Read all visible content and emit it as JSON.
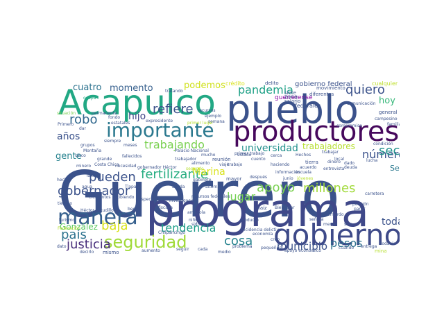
{
  "words": [
    {
      "text": "Guerrero",
      "color": "#3b528b"
    },
    {
      "text": "programa",
      "color": "#3f4889"
    },
    {
      "text": "pueblo",
      "color": "#3b528b"
    },
    {
      "text": "Acapulco",
      "color": "#22a884"
    },
    {
      "text": "productores",
      "color": "#46085c"
    },
    {
      "text": "gobierno",
      "color": "#3e4a89"
    },
    {
      "text": "importante",
      "color": "#2a788e"
    },
    {
      "text": "manera",
      "color": "#355f8d"
    },
    {
      "text": "seguridad",
      "color": "#a0da39"
    },
    {
      "text": "gobernador",
      "color": "#3b528b"
    },
    {
      "text": "pandemia",
      "color": "#1fa187"
    },
    {
      "text": "quiero",
      "color": "#3b528b"
    },
    {
      "text": "apoyo",
      "color": "#7ad151"
    },
    {
      "text": "fertilizante",
      "color": "#27ad81"
    },
    {
      "text": "trabajando",
      "color": "#7ad151"
    },
    {
      "text": "refiere",
      "color": "#3b528b"
    },
    {
      "text": "robo",
      "color": "#31688e"
    },
    {
      "text": "hijo",
      "color": "#414487"
    },
    {
      "text": "pueden",
      "color": "#3b528b"
    },
    {
      "text": "baja",
      "color": "#d8e219"
    },
    {
      "text": "país",
      "color": "#2c728e"
    },
    {
      "text": "justicia",
      "color": "#472d7b"
    },
    {
      "text": "tendencia",
      "color": "#1f9e89"
    },
    {
      "text": "cosa",
      "color": "#26828e"
    },
    {
      "text": "municipio",
      "color": "#3b528b"
    },
    {
      "text": "pesos",
      "color": "#2d708e"
    },
    {
      "text": "lugar",
      "color": "#75d054"
    },
    {
      "text": "millones",
      "color": "#a0da39"
    },
    {
      "text": "número",
      "color": "#3b528b"
    },
    {
      "text": "secretario",
      "color": "#21918c"
    },
    {
      "text": "toda",
      "color": "#3b528b"
    },
    {
      "text": "Marina",
      "color": "#d8e219"
    },
    {
      "text": "cuatro",
      "color": "#2c728e"
    },
    {
      "text": "momento",
      "color": "#355f8d"
    },
    {
      "text": "podemos",
      "color": "#d0e11c"
    },
    {
      "text": "universidad",
      "color": "#21918c"
    },
    {
      "text": "trabajadores",
      "color": "#b5de2b"
    },
    {
      "text": "años",
      "color": "#3b528b"
    },
    {
      "text": "gente",
      "color": "#26828e"
    },
    {
      "text": "hoy",
      "color": "#35b779"
    },
    {
      "text": "González",
      "color": "#5ec962"
    },
    {
      "text": "Seguridad Pública",
      "color": "#2a788e"
    },
    {
      "text": "gobierno federal",
      "color": "#3b528b"
    },
    {
      "text": "crédito",
      "color": "#d8e219"
    },
    {
      "text": "delito",
      "color": "#3b528b"
    },
    {
      "text": "movimiento",
      "color": "#3b528b"
    },
    {
      "text": "cualquier",
      "color": "#bddf26"
    },
    {
      "text": "guerrerense",
      "color": "#8b0aa5"
    },
    {
      "text": "zona",
      "color": "#3b528b"
    },
    {
      "text": "federales",
      "color": "#3b528b"
    },
    {
      "text": "siete",
      "color": "#3b528b"
    },
    {
      "text": "diferentes",
      "color": "#3b528b"
    },
    {
      "text": "salario",
      "color": "#3b528b"
    },
    {
      "text": "comunicación",
      "color": "#3b528b"
    },
    {
      "text": "ocupa",
      "color": "#22a884"
    },
    {
      "text": "situación",
      "color": "#7ad151"
    },
    {
      "text": "permanente",
      "color": "#3b528b"
    },
    {
      "text": "recursos",
      "color": "#3b528b"
    },
    {
      "text": "expresidente",
      "color": "#3b528b"
    },
    {
      "text": "ejemplo",
      "color": "#3b528b"
    },
    {
      "text": "semana",
      "color": "#3b528b"
    },
    {
      "text": "primer lugar",
      "color": "#b5de2b"
    },
    {
      "text": "Primero",
      "color": "#3b528b"
    },
    {
      "text": "dar",
      "color": "#3b528b"
    },
    {
      "text": "fondo",
      "color": "#3b528b"
    },
    {
      "text": "estatales",
      "color": "#3b528b"
    },
    {
      "text": "meses",
      "color": "#3b528b"
    },
    {
      "text": "siempre",
      "color": "#3b528b"
    },
    {
      "text": "grupos",
      "color": "#3b528b"
    },
    {
      "text": "cinco",
      "color": "#3b528b"
    },
    {
      "text": "Montaña",
      "color": "#3b528b"
    },
    {
      "text": "minero",
      "color": "#3b528b"
    },
    {
      "text": "Costa Chica",
      "color": "#3b528b"
    },
    {
      "text": "hecho",
      "color": "#3b528b"
    },
    {
      "text": "tiempo",
      "color": "#3b528b"
    },
    {
      "text": "turismo",
      "color": "#3b528b"
    },
    {
      "text": "Federación",
      "color": "#b5de2b"
    },
    {
      "text": "dato",
      "color": "#3b528b"
    },
    {
      "text": "elementos",
      "color": "#3b528b"
    },
    {
      "text": "recibiendo",
      "color": "#3b528b"
    },
    {
      "text": "Héctor Astudillo",
      "color": "#3b528b"
    },
    {
      "text": "beca",
      "color": "#3b528b"
    },
    {
      "text": "mismo",
      "color": "#3b528b"
    },
    {
      "text": "decirlo",
      "color": "#3b528b"
    },
    {
      "text": "aumento",
      "color": "#3b528b"
    },
    {
      "text": "Chilpancingo",
      "color": "#3b528b"
    },
    {
      "text": "niños",
      "color": "#3b528b"
    },
    {
      "text": "amapola",
      "color": "#3b528b"
    },
    {
      "text": "fiscalía",
      "color": "#3b528b"
    },
    {
      "text": "gabinete",
      "color": "#3b528b"
    },
    {
      "text": "alimento",
      "color": "#3b528b"
    },
    {
      "text": "alternativa",
      "color": "#3b528b"
    },
    {
      "text": "mayor",
      "color": "#3b528b"
    },
    {
      "text": "después",
      "color": "#3b528b"
    },
    {
      "text": "cuento",
      "color": "#3b528b"
    },
    {
      "text": "maíz",
      "color": "#3b528b"
    },
    {
      "text": "incidencia delictiva",
      "color": "#3b528b"
    },
    {
      "text": "problema",
      "color": "#3b528b"
    },
    {
      "text": "cada",
      "color": "#3b528b"
    },
    {
      "text": "seguir",
      "color": "#3b528b"
    },
    {
      "text": "Bienestar",
      "color": "#3b528b"
    },
    {
      "text": "menos",
      "color": "#3b528b"
    },
    {
      "text": "sino",
      "color": "#3b528b"
    },
    {
      "text": "tierra",
      "color": "#3b528b"
    },
    {
      "text": "acuerdo",
      "color": "#3b528b"
    },
    {
      "text": "escuela",
      "color": "#3b528b"
    },
    {
      "text": "trabajo",
      "color": "#3b528b"
    },
    {
      "text": "información",
      "color": "#3b528b"
    },
    {
      "text": "segundo",
      "color": "#b5de2b"
    },
    {
      "text": "junio",
      "color": "#3b528b"
    },
    {
      "text": "jóvenes",
      "color": "#b5de2b"
    },
    {
      "text": "reunión",
      "color": "#3b528b"
    },
    {
      "text": "lucha",
      "color": "#3b528b"
    },
    {
      "text": "dado",
      "color": "#3b528b"
    },
    {
      "text": "condición",
      "color": "#3b528b"
    },
    {
      "text": "compromiso",
      "color": "#3b528b"
    },
    {
      "text": "general",
      "color": "#3b528b"
    },
    {
      "text": "campesino",
      "color": "#3b528b"
    },
    {
      "text": "familia",
      "color": "#3b528b"
    },
    {
      "text": "partir",
      "color": "#3b528b"
    },
    {
      "text": "pensión",
      "color": "#3b528b"
    },
    {
      "text": "entrega",
      "color": "#3b528b"
    },
    {
      "text": "todavía",
      "color": "#3b528b"
    },
    {
      "text": "mina",
      "color": "#b5de2b"
    },
    {
      "text": "tratando",
      "color": "#3b528b"
    },
    {
      "text": "estado",
      "color": "#3b528b"
    },
    {
      "text": "cerca",
      "color": "#3b528b"
    },
    {
      "text": "sido",
      "color": "#3b528b"
    },
    {
      "text": "ayuda",
      "color": "#3b528b"
    },
    {
      "text": "investigación",
      "color": "#3b528b"
    },
    {
      "text": "señora",
      "color": "#3b528b"
    },
    {
      "text": "pequeños",
      "color": "#3b528b"
    },
    {
      "text": "medio",
      "color": "#3b528b"
    },
    {
      "text": "economía",
      "color": "#3b528b"
    },
    {
      "text": "creo",
      "color": "#3b528b"
    },
    {
      "text": "carretera",
      "color": "#3b528b"
    },
    {
      "text": "deuda",
      "color": "#3b528b"
    },
    {
      "text": "trabajar",
      "color": "#3b528b"
    },
    {
      "text": "producto",
      "color": "#3b528b"
    },
    {
      "text": "vez",
      "color": "#3b528b"
    },
    {
      "text": "Bernardo",
      "color": "#3b528b"
    },
    {
      "text": "Palacio Nacional",
      "color": "#3b528b"
    },
    {
      "text": "haciendo",
      "color": "#3b528b"
    },
    {
      "text": "entrevista",
      "color": "#3b528b"
    },
    {
      "text": "gobernador Héctor",
      "color": "#3b528b"
    },
    {
      "text": "fallecidos",
      "color": "#3b528b"
    },
    {
      "text": "especialmente",
      "color": "#3b528b"
    },
    {
      "text": "trabajador",
      "color": "#3b528b"
    },
    {
      "text": "recursos federales",
      "color": "#3b528b"
    },
    {
      "text": "primer trabajo",
      "color": "#3b528b"
    },
    {
      "text": "mucho",
      "color": "#3b528b"
    },
    {
      "text": "Hechos",
      "color": "#3b528b"
    },
    {
      "text": "dinero",
      "color": "#3b528b"
    },
    {
      "text": "apoyo económico",
      "color": "#3b528b"
    },
    {
      "text": "cuando",
      "color": "#3b528b"
    },
    {
      "text": "grande",
      "color": "#3b528b"
    },
    {
      "text": "necesidad",
      "color": "#3b528b"
    },
    {
      "text": "Tlapa",
      "color": "#3b528b"
    },
    {
      "text": "agua",
      "color": "#3b528b"
    },
    {
      "text": "Taxco",
      "color": "#3b528b"
    },
    {
      "text": "viaje",
      "color": "#3b528b"
    },
    {
      "text": "local",
      "color": "#3b528b"
    },
    {
      "text": "precio",
      "color": "#3b528b"
    },
    {
      "text": "plan",
      "color": "#3b528b"
    }
  ]
}
